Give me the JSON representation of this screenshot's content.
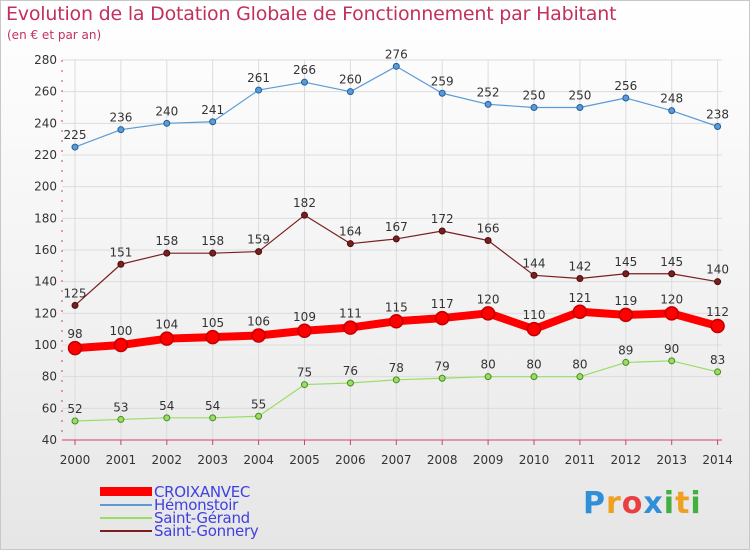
{
  "chart_data": {
    "type": "line",
    "title": "Evolution de la Dotation Globale de Fonctionnement par Habitant",
    "subtitle": "(en € et par an)",
    "xlabel": "",
    "ylabel": "",
    "categories": [
      "2000",
      "2001",
      "2002",
      "2003",
      "2004",
      "2005",
      "2006",
      "2007",
      "2008",
      "2009",
      "2010",
      "2011",
      "2012",
      "2013",
      "2014"
    ],
    "ylim": [
      40,
      280
    ],
    "yticks": [
      40,
      60,
      80,
      100,
      120,
      140,
      160,
      180,
      200,
      220,
      240,
      260,
      280
    ],
    "grid": true,
    "legend_position": "bottom-left",
    "series": [
      {
        "name": "CROIXANVEC",
        "color": "#ff0000",
        "values": [
          98,
          100,
          104,
          105,
          106,
          109,
          111,
          115,
          117,
          120,
          110,
          121,
          119,
          120,
          112
        ]
      },
      {
        "name": "Hémonstoir",
        "color": "#5b9bd5",
        "values": [
          225,
          236,
          240,
          241,
          261,
          266,
          260,
          276,
          259,
          252,
          250,
          250,
          256,
          248,
          238
        ]
      },
      {
        "name": "Saint-Gérand",
        "color": "#99dd66",
        "values": [
          52,
          53,
          54,
          54,
          55,
          75,
          76,
          78,
          79,
          80,
          80,
          80,
          89,
          90,
          83
        ]
      },
      {
        "name": "Saint-Gonnery",
        "color": "#7a1f1f",
        "values": [
          125,
          151,
          158,
          158,
          159,
          182,
          164,
          167,
          172,
          166,
          144,
          142,
          145,
          145,
          140
        ]
      }
    ]
  },
  "logo": {
    "letters": [
      "P",
      "r",
      "o",
      "x",
      "i",
      "t",
      "i"
    ]
  }
}
